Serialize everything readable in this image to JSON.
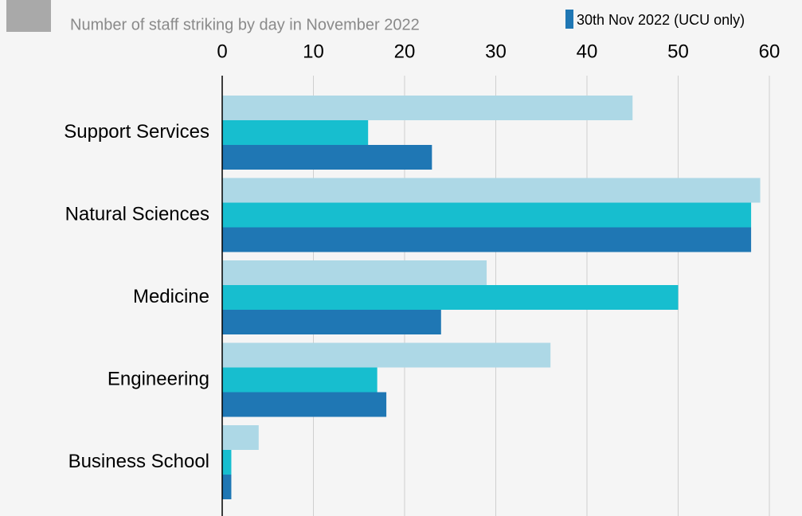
{
  "chart_data": {
    "type": "bar",
    "orientation": "horizontal",
    "subtitle": "Number of staff striking by day in November 2022",
    "categories": [
      "Support Services",
      "Natural Sciences",
      "Medicine",
      "Engineering",
      "Business School"
    ],
    "series": [
      {
        "color": "#add8e6",
        "values": [
          45,
          59,
          29,
          36,
          4
        ]
      },
      {
        "color": "#17becf",
        "values": [
          16,
          58,
          50,
          17,
          1
        ]
      },
      {
        "name": "30th Nov 2022 (UCU only)",
        "color": "#1f77b4",
        "values": [
          23,
          58,
          24,
          18,
          1
        ]
      }
    ],
    "xlim": [
      0,
      60
    ],
    "xticks": [
      0,
      10,
      20,
      30,
      40,
      50,
      60
    ],
    "grid": true
  }
}
